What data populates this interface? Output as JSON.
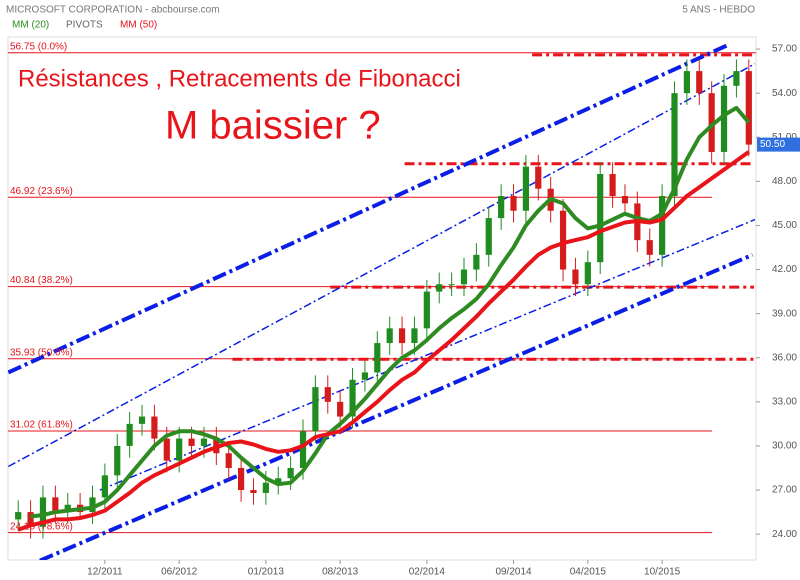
{
  "chart_data": {
    "type": "candlestick",
    "title": "MICROSOFT CORPORATION - abcbourse.com",
    "subtitle": "5 ANS - HEBDO",
    "pivots_label": "PIVOTS",
    "annotations": [
      "Résistances , Retracements de Fibonacci",
      "M baissier ?"
    ],
    "categories": [
      null,
      null,
      null,
      null,
      null,
      null,
      null,
      "12/2011",
      null,
      null,
      null,
      null,
      null,
      "06/2012",
      null,
      null,
      null,
      null,
      null,
      null,
      "01/2013",
      null,
      null,
      null,
      null,
      null,
      "08/2013",
      null,
      null,
      null,
      null,
      null,
      null,
      "02/2014",
      null,
      null,
      null,
      null,
      null,
      null,
      "09/2014",
      null,
      null,
      null,
      null,
      null,
      "04/2015",
      null,
      null,
      null,
      null,
      null,
      "10/2015",
      null,
      null,
      null,
      null,
      null,
      null,
      null
    ],
    "open": [
      25.0,
      25.5,
      24.5,
      26.5,
      25.5,
      26.0,
      25.5,
      26.5,
      28.0,
      30.0,
      31.5,
      32.0,
      30.5,
      29.0,
      30.5,
      30.0,
      30.5,
      29.5,
      28.5,
      27.0,
      26.8,
      27.5,
      27.8,
      28.5,
      31.0,
      34.0,
      33.0,
      32.0,
      34.5,
      35.0,
      37.0,
      38.0,
      37.0,
      38.0,
      40.5,
      41.0,
      41.0,
      42.0,
      43.0,
      45.5,
      47.0,
      46.0,
      49.0,
      47.5,
      46.0,
      42.0,
      41.0,
      42.5,
      48.5,
      47.0,
      46.5,
      44.0,
      43.0,
      47.0,
      54.0,
      55.5,
      54.0,
      50.0,
      54.5,
      55.5
    ],
    "high": [
      26.3,
      26.3,
      27.3,
      27.3,
      26.8,
      26.8,
      27.3,
      28.8,
      30.8,
      32.3,
      32.8,
      32.8,
      31.3,
      31.3,
      31.3,
      31.3,
      31.3,
      30.3,
      29.3,
      27.8,
      28.3,
      28.6,
      29.3,
      31.8,
      34.8,
      34.8,
      33.8,
      35.3,
      35.8,
      37.8,
      38.8,
      38.8,
      38.8,
      41.3,
      41.8,
      41.8,
      42.8,
      43.8,
      46.3,
      47.8,
      47.8,
      49.8,
      49.8,
      48.3,
      46.8,
      42.8,
      43.3,
      49.3,
      49.3,
      47.8,
      47.3,
      44.8,
      47.8,
      54.8,
      56.3,
      56.3,
      54.8,
      55.3,
      56.3,
      56.3
    ],
    "low": [
      24.2,
      23.7,
      23.7,
      24.7,
      24.7,
      25.2,
      24.7,
      25.7,
      27.2,
      29.2,
      30.7,
      29.7,
      28.2,
      28.2,
      29.2,
      29.2,
      28.7,
      27.7,
      26.2,
      26.0,
      26.0,
      26.7,
      27.0,
      27.7,
      30.2,
      32.2,
      31.2,
      31.2,
      33.7,
      34.2,
      36.2,
      36.2,
      36.2,
      37.2,
      39.7,
      40.2,
      40.2,
      41.2,
      42.2,
      44.7,
      45.2,
      45.2,
      46.7,
      45.2,
      41.2,
      40.2,
      40.2,
      41.7,
      46.2,
      45.7,
      43.2,
      42.2,
      42.2,
      46.2,
      53.2,
      53.2,
      49.2,
      49.2,
      53.7,
      49.7
    ],
    "close": [
      25.5,
      24.5,
      26.5,
      25.5,
      26.0,
      25.5,
      26.5,
      28.0,
      30.0,
      31.5,
      32.0,
      30.5,
      29.0,
      30.5,
      30.0,
      30.5,
      29.5,
      28.5,
      27.0,
      26.8,
      27.5,
      27.8,
      28.5,
      31.0,
      34.0,
      33.0,
      32.0,
      34.5,
      35.0,
      37.0,
      38.0,
      37.0,
      38.0,
      40.5,
      41.0,
      41.0,
      42.0,
      43.0,
      45.5,
      47.0,
      46.0,
      49.0,
      47.5,
      46.0,
      42.0,
      41.0,
      42.5,
      48.5,
      47.0,
      46.5,
      44.0,
      43.0,
      47.0,
      54.0,
      55.5,
      54.0,
      50.0,
      54.5,
      55.5,
      50.5
    ],
    "up_color": "#1f8c1f",
    "down_color": "#d41c1c",
    "series": [
      {
        "name": "MM (20)",
        "color": "#2e8b22",
        "values": [
          null,
          25.2,
          25.3,
          25.5,
          25.6,
          25.7,
          25.8,
          26.2,
          27,
          28,
          29,
          30,
          30.7,
          31,
          31,
          30.8,
          30.5,
          30,
          29.2,
          28.5,
          27.8,
          27.4,
          27.5,
          28.3,
          29.5,
          30.8,
          31.5,
          32.3,
          33.2,
          34.2,
          35.2,
          36,
          36.5,
          37.2,
          38,
          38.7,
          39.3,
          40,
          41,
          42.3,
          43.5,
          45,
          46,
          46.8,
          46.5,
          45.5,
          44.8,
          45,
          45.4,
          45.8,
          45.5,
          45.3,
          45.8,
          47.5,
          49.5,
          51,
          51.8,
          52.5,
          53,
          52
        ]
      },
      {
        "name": "MM (50)",
        "color": "#e8141a",
        "values": [
          24.3,
          24.6,
          24.8,
          25,
          25,
          25.1,
          25.3,
          25.6,
          26.2,
          26.8,
          27.5,
          28,
          28.4,
          28.8,
          29.2,
          29.6,
          29.9,
          30.2,
          30.3,
          30.1,
          29.8,
          29.6,
          29.7,
          30,
          30.6,
          30.8,
          31,
          31.6,
          32.3,
          33,
          33.8,
          34.5,
          35,
          35.8,
          36.5,
          37.2,
          38,
          38.8,
          39.7,
          40.5,
          41.3,
          42.2,
          43,
          43.5,
          43.8,
          44,
          44.2,
          44.6,
          44.9,
          45.2,
          45.3,
          45.2,
          45.4,
          46.2,
          47,
          47.6,
          48.2,
          48.8,
          49.4,
          50
        ]
      }
    ],
    "fibonacci": [
      {
        "value": 56.75,
        "label": "56.75 (0.0%)"
      },
      {
        "value": 46.92,
        "label": "46.92 (23.6%)"
      },
      {
        "value": 40.84,
        "label": "40.84 (38.2%)"
      },
      {
        "value": 35.93,
        "label": "35.93 (50.0%)"
      },
      {
        "value": 31.02,
        "label": "31.02 (61.8%)"
      },
      {
        "value": 24.1,
        "label": "24.10 (78.6%)"
      }
    ],
    "resistances": [
      {
        "value": 56.6,
        "start": 41.5
      },
      {
        "value": 49.2,
        "start": 31.2
      },
      {
        "value": 40.8,
        "start": 25.2
      },
      {
        "value": 35.9,
        "start": 17.3
      }
    ],
    "trendlines": [
      {
        "x": [
          -0.8,
          57.3
        ],
        "y": [
          35.0,
          57.27
        ],
        "style": "thick"
      },
      {
        "x": [
          -0.8,
          59.5
        ],
        "y": [
          28.6,
          56.0
        ],
        "style": "thin"
      },
      {
        "x": [
          6.6,
          59.5
        ],
        "y": [
          27.0,
          45.4
        ],
        "style": "thin"
      },
      {
        "x": [
          1.76,
          59.3
        ],
        "y": [
          22.2,
          43.0
        ],
        "style": "thick"
      }
    ],
    "trend_color": "#0a1ee6",
    "last_price": {
      "value": 50.5,
      "label": "50.50"
    },
    "ylim": [
      22.24,
      57.82
    ],
    "yticks": [
      {
        "value": 24,
        "label": "24.00"
      },
      {
        "value": 27,
        "label": "27.00"
      },
      {
        "value": 30,
        "label": "30.00"
      },
      {
        "value": 33,
        "label": "33.00"
      },
      {
        "value": 36,
        "label": "36.00"
      },
      {
        "value": 39,
        "label": "39.00"
      },
      {
        "value": 42,
        "label": "42.00"
      },
      {
        "value": 45,
        "label": "45.00"
      },
      {
        "value": 48,
        "label": "48.00"
      },
      {
        "value": 51,
        "label": "51.00"
      },
      {
        "value": 54,
        "label": "54.00"
      },
      {
        "value": 57,
        "label": "57.00"
      }
    ]
  }
}
